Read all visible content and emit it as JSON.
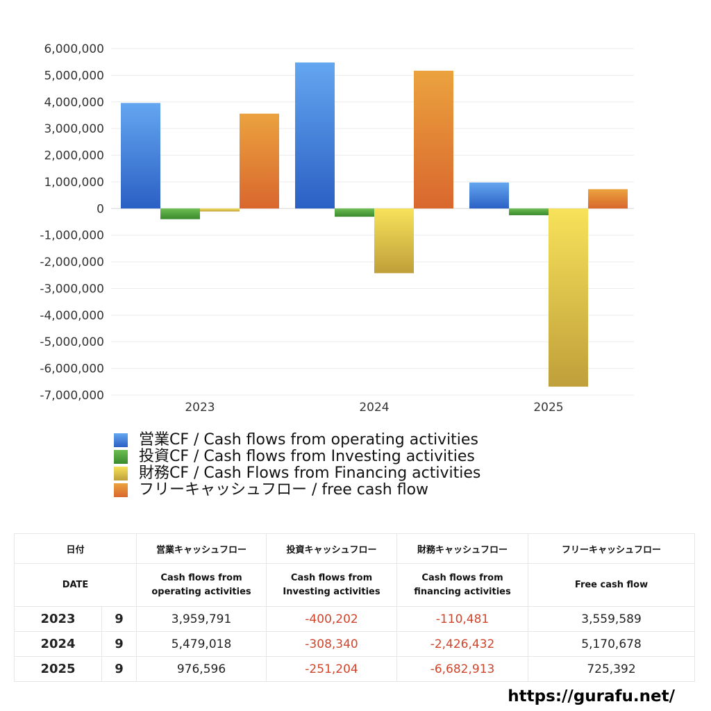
{
  "chart_data": {
    "type": "bar",
    "categories": [
      "2023",
      "2024",
      "2025"
    ],
    "ylim": [
      -7000000,
      6000000
    ],
    "yticks": [
      "6,000,000",
      "5,000,000",
      "4,000,000",
      "3,000,000",
      "2,000,000",
      "1,000,000",
      "0",
      "-1,000,000",
      "-2,000,000",
      "-3,000,000",
      "-4,000,000",
      "-5,000,000",
      "-6,000,000",
      "-7,000,000"
    ],
    "ytick_values": [
      6000000,
      5000000,
      4000000,
      3000000,
      2000000,
      1000000,
      0,
      -1000000,
      -2000000,
      -3000000,
      -4000000,
      -5000000,
      -6000000,
      -7000000
    ],
    "grid": true,
    "legend_position": "bottom-left",
    "series": [
      {
        "name": "営業CF / Cash flows from operating activities",
        "values": [
          3959791,
          5479018,
          976596
        ],
        "color_top": "#64a6f0",
        "color_bottom": "#2b60c4"
      },
      {
        "name": "投資CF / Cash flows from Investing activities",
        "values": [
          -400202,
          -308340,
          -251204
        ],
        "color_top": "#6cbd52",
        "color_bottom": "#3a8a2e"
      },
      {
        "name": "財務CF / Cash Flows from Financing activities",
        "values": [
          -110481,
          -2426432,
          -6682913
        ],
        "color_top": "#f7e25a",
        "color_bottom": "#bf9f3a"
      },
      {
        "name": "フリーキャッシュフロー / free cash flow",
        "values": [
          3559589,
          5170678,
          725392
        ],
        "color_top": "#eba23e",
        "color_bottom": "#d9672e"
      }
    ]
  },
  "table": {
    "header_jp": [
      "日付",
      "営業キャッシュフロー",
      "投資キャッシュフロー",
      "財務キャッシュフロー",
      "フリーキャッシュフロー"
    ],
    "header_en": [
      "DATE",
      "Cash flows from",
      "operating activities",
      "Cash flows from",
      "Investing activities",
      "Cash flows from",
      "financing activities",
      "Free cash flow"
    ],
    "rows": [
      {
        "year": "2023",
        "month": "9",
        "op": "3,959,791",
        "inv": "-400,202",
        "fin": "-110,481",
        "free": "3,559,589"
      },
      {
        "year": "2024",
        "month": "9",
        "op": "5,479,018",
        "inv": "-308,340",
        "fin": "-2,426,432",
        "free": "5,170,678"
      },
      {
        "year": "2025",
        "month": "9",
        "op": "976,596",
        "inv": "-251,204",
        "fin": "-6,682,913",
        "free": "725,392"
      }
    ],
    "negative_color": "#d0442a"
  },
  "footer": {
    "url": "https://gurafu.net/"
  }
}
